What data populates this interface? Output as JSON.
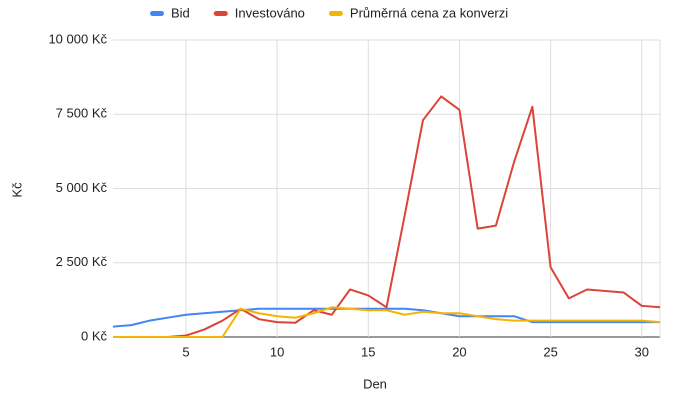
{
  "chart_data": {
    "type": "line",
    "x": [
      1,
      2,
      3,
      4,
      5,
      6,
      7,
      8,
      9,
      10,
      11,
      12,
      13,
      14,
      15,
      16,
      17,
      18,
      19,
      20,
      21,
      22,
      23,
      24,
      25,
      26,
      27,
      28,
      29,
      30,
      31
    ],
    "series": [
      {
        "name": "Bid",
        "color": "#4285f4",
        "values": [
          350,
          400,
          550,
          650,
          750,
          800,
          850,
          900,
          950,
          950,
          950,
          950,
          950,
          950,
          950,
          950,
          950,
          900,
          800,
          700,
          700,
          700,
          700,
          500,
          500,
          500,
          500,
          500,
          500,
          500,
          500
        ]
      },
      {
        "name": "Investováno",
        "color": "#db4437",
        "values": [
          0,
          0,
          0,
          0,
          50,
          250,
          550,
          950,
          600,
          500,
          480,
          900,
          750,
          1600,
          1400,
          1000,
          4100,
          7300,
          8100,
          7650,
          3650,
          3750,
          5900,
          7750,
          2350,
          1300,
          1600,
          1550,
          1500,
          1050,
          1000
        ]
      },
      {
        "name": "Průměrná cena za konverzi",
        "color": "#f4b400",
        "values": [
          0,
          0,
          0,
          0,
          0,
          0,
          0,
          950,
          800,
          700,
          650,
          800,
          1000,
          950,
          900,
          900,
          750,
          850,
          800,
          800,
          700,
          600,
          550,
          550,
          550,
          550,
          550,
          550,
          550,
          550,
          500
        ]
      }
    ],
    "xlim": [
      1,
      31
    ],
    "xticks": [
      5,
      10,
      15,
      20,
      25,
      30
    ],
    "ylim": [
      0,
      10000
    ],
    "yticks": [
      {
        "value": 0,
        "label": "0 Kč"
      },
      {
        "value": 2500,
        "label": "2 500 Kč"
      },
      {
        "value": 5000,
        "label": "5 000 Kč"
      },
      {
        "value": 7500,
        "label": "7 500 Kč"
      },
      {
        "value": 10000,
        "label": "10 000 Kč"
      }
    ],
    "x_label": "Den",
    "y_label": "Kč",
    "grid": true,
    "legend": "top"
  }
}
